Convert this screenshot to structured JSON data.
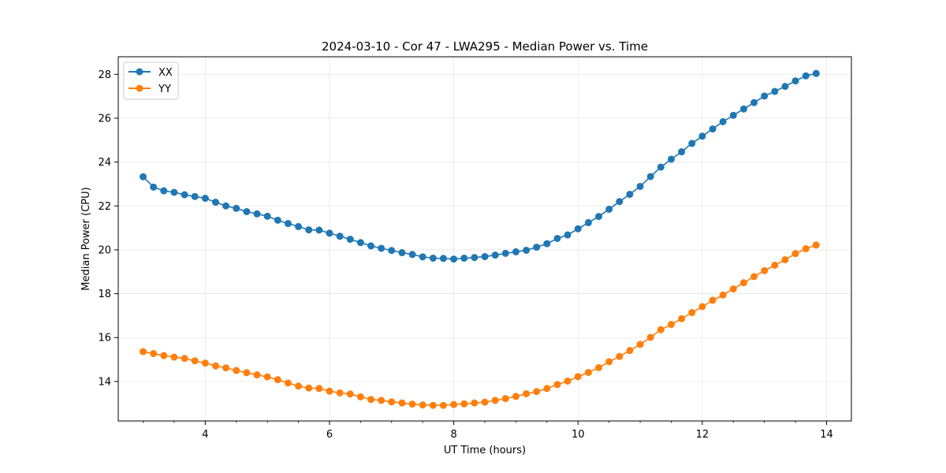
{
  "chart_data": {
    "type": "line",
    "title": "2024-03-10 - Cor 47 - LWA295 - Median Power vs. Time",
    "xlabel": "UT Time (hours)",
    "ylabel": "Median Power (CPU)",
    "xlim": [
      2.6,
      14.4
    ],
    "ylim": [
      12.2,
      28.8
    ],
    "xticks": [
      4,
      6,
      8,
      10,
      12,
      14
    ],
    "yticks": [
      14,
      16,
      18,
      20,
      22,
      24,
      26,
      28
    ],
    "xtick_labels": [
      "4",
      "6",
      "8",
      "10",
      "12",
      "14"
    ],
    "ytick_labels": [
      "14",
      "16",
      "18",
      "20",
      "22",
      "24",
      "26",
      "28"
    ],
    "grid": true,
    "legend": "top-left",
    "x": [
      3.0,
      3.167,
      3.333,
      3.5,
      3.667,
      3.833,
      4.0,
      4.167,
      4.333,
      4.5,
      4.667,
      4.833,
      5.0,
      5.167,
      5.333,
      5.5,
      5.667,
      5.833,
      6.0,
      6.167,
      6.333,
      6.5,
      6.667,
      6.833,
      7.0,
      7.167,
      7.333,
      7.5,
      7.667,
      7.833,
      8.0,
      8.167,
      8.333,
      8.5,
      8.667,
      8.833,
      9.0,
      9.167,
      9.333,
      9.5,
      9.667,
      9.833,
      10.0,
      10.167,
      10.333,
      10.5,
      10.667,
      10.833,
      11.0,
      11.167,
      11.333,
      11.5,
      11.667,
      11.833,
      12.0,
      12.167,
      12.333,
      12.5,
      12.667,
      12.833,
      13.0,
      13.167,
      13.333,
      13.5,
      13.667,
      13.833
    ],
    "series": [
      {
        "name": "XX",
        "color": "#1f77b4",
        "values": [
          23.33,
          22.86,
          22.69,
          22.62,
          22.51,
          22.43,
          22.35,
          22.17,
          22.0,
          21.89,
          21.74,
          21.64,
          21.53,
          21.35,
          21.2,
          21.06,
          20.91,
          20.9,
          20.76,
          20.62,
          20.48,
          20.33,
          20.18,
          20.07,
          19.97,
          19.87,
          19.79,
          19.68,
          19.62,
          19.61,
          19.58,
          19.62,
          19.65,
          19.69,
          19.76,
          19.84,
          19.91,
          19.98,
          20.12,
          20.28,
          20.52,
          20.68,
          20.96,
          21.24,
          21.52,
          21.85,
          22.2,
          22.53,
          22.89,
          23.34,
          23.77,
          24.13,
          24.47,
          24.85,
          25.18,
          25.51,
          25.84,
          26.13,
          26.42,
          26.71,
          27.01,
          27.22,
          27.45,
          27.7,
          27.93,
          28.04
        ]
      },
      {
        "name": "YY",
        "color": "#ff7f0e",
        "values": [
          15.36,
          15.27,
          15.18,
          15.11,
          15.05,
          14.94,
          14.84,
          14.71,
          14.62,
          14.5,
          14.4,
          14.3,
          14.21,
          14.08,
          13.93,
          13.79,
          13.7,
          13.68,
          13.56,
          13.48,
          13.43,
          13.3,
          13.18,
          13.14,
          13.07,
          13.02,
          12.97,
          12.93,
          12.91,
          12.91,
          12.95,
          12.98,
          13.02,
          13.06,
          13.14,
          13.22,
          13.32,
          13.44,
          13.54,
          13.68,
          13.86,
          14.02,
          14.22,
          14.41,
          14.63,
          14.9,
          15.14,
          15.41,
          15.69,
          16.01,
          16.36,
          16.6,
          16.86,
          17.14,
          17.41,
          17.7,
          17.94,
          18.22,
          18.5,
          18.78,
          19.05,
          19.3,
          19.55,
          19.83,
          20.05,
          20.22
        ]
      }
    ]
  }
}
